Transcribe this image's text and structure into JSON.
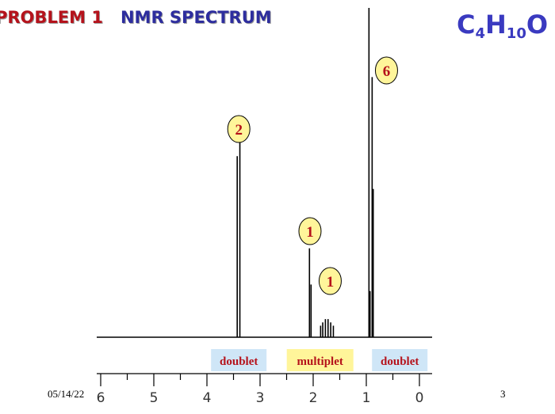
{
  "title": {
    "problem": "PROBLEM  1",
    "spectrum": "NMR SPECTRUM"
  },
  "formula": {
    "c": "C",
    "c_count": "4",
    "h": "H",
    "h_count": "10",
    "o": "O"
  },
  "footer": {
    "date": "05/14/22",
    "page": "3"
  },
  "colors": {
    "problem_text": "#b5121b",
    "spectrum_text": "#2d2d9e",
    "formula_text": "#3a3ac0",
    "integration_fill": "#fff59a",
    "integration_text": "#b5121b",
    "doublet_box": "#cfe6f7",
    "multiplet_box": "#fff59a",
    "label_text": "#b5121b"
  },
  "chart_data": {
    "type": "line",
    "title": "",
    "xlabel": "",
    "ylabel": "",
    "xlim": [
      6,
      0
    ],
    "x_ticks": [
      6,
      5,
      4,
      3,
      2,
      1,
      0
    ],
    "x_tick_labels": [
      "6",
      "5",
      "4",
      "3",
      "2",
      "1",
      "0"
    ],
    "peaks": [
      {
        "ppm": 3.43,
        "height": 0.55
      },
      {
        "ppm": 3.38,
        "height": 0.61
      },
      {
        "ppm": 2.07,
        "height": 0.27
      },
      {
        "ppm": 2.04,
        "height": 0.16
      },
      {
        "ppm": 1.86,
        "height": 0.035
      },
      {
        "ppm": 1.82,
        "height": 0.045
      },
      {
        "ppm": 1.77,
        "height": 0.055
      },
      {
        "ppm": 1.72,
        "height": 0.055
      },
      {
        "ppm": 1.67,
        "height": 0.045
      },
      {
        "ppm": 1.62,
        "height": 0.035
      },
      {
        "ppm": 0.95,
        "height": 1.0
      },
      {
        "ppm": 0.93,
        "height": 0.14
      },
      {
        "ppm": 0.89,
        "height": 0.79
      },
      {
        "ppm": 0.87,
        "height": 0.45
      }
    ],
    "integrations": [
      {
        "label": "2",
        "ppm": 3.4
      },
      {
        "label": "1",
        "ppm": 2.06
      },
      {
        "label": "1",
        "ppm": 1.68
      },
      {
        "label": "6",
        "ppm": 0.62
      }
    ],
    "multiplicity_labels": [
      {
        "label": "doublet",
        "ppm": 3.4,
        "style": "doublet"
      },
      {
        "label": "multiplet",
        "ppm": 1.87,
        "style": "multiplet"
      },
      {
        "label": "doublet",
        "ppm": 0.37,
        "style": "doublet"
      }
    ]
  }
}
